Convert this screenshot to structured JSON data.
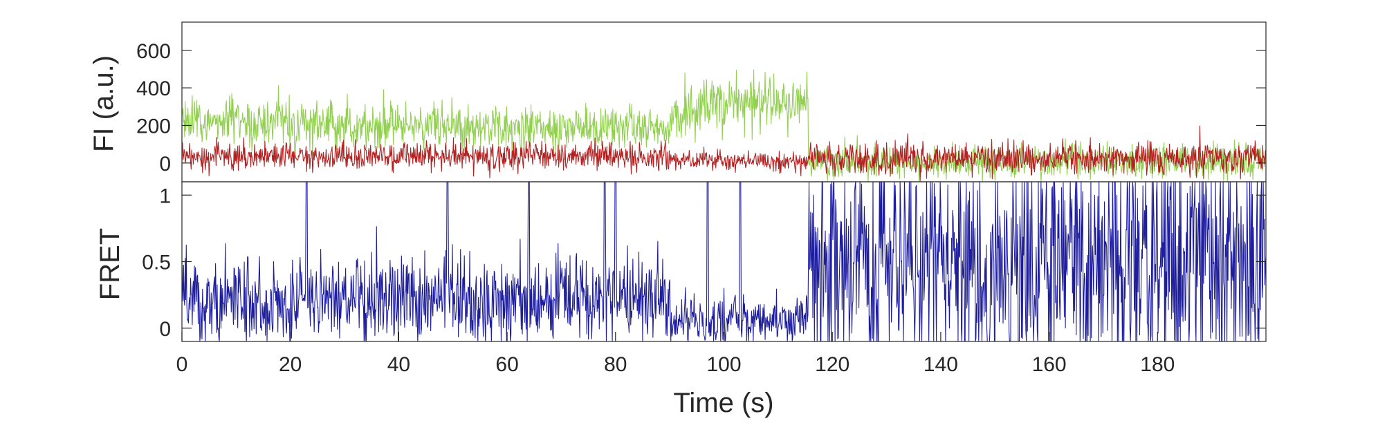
{
  "chart_data": [
    {
      "type": "line",
      "panel": "top",
      "ylabel": "FI (a.u.)",
      "xlim": [
        0,
        200
      ],
      "ylim": [
        -100,
        750
      ],
      "yticks": [
        0,
        200,
        400,
        600
      ],
      "ytick_labels": [
        "0",
        "200",
        "400",
        "600"
      ],
      "grid": false,
      "series": [
        {
          "color": "#92d050",
          "segments": [
            {
              "from": 0,
              "to": 20,
              "mean": 220,
              "noise": 65
            },
            {
              "from": 20,
              "to": 50,
              "mean": 200,
              "noise": 65
            },
            {
              "from": 50,
              "to": 90,
              "mean": 190,
              "noise": 55
            },
            {
              "from": 90,
              "to": 95,
              "mean": 260,
              "noise": 70
            },
            {
              "from": 95,
              "to": 115.5,
              "mean": 320,
              "noise": 75
            },
            {
              "from": 115.5,
              "to": 200,
              "mean": 5,
              "noise": 45
            }
          ]
        },
        {
          "color": "#b22222",
          "segments": [
            {
              "from": 0,
              "to": 90,
              "mean": 35,
              "noise": 38
            },
            {
              "from": 90,
              "to": 115.5,
              "mean": 15,
              "noise": 28
            },
            {
              "from": 115.5,
              "to": 200,
              "mean": 25,
              "noise": 42
            }
          ]
        }
      ]
    },
    {
      "type": "line",
      "panel": "bottom",
      "xlabel": "Time (s)",
      "ylabel": "FRET",
      "xlim": [
        0,
        200
      ],
      "ylim": [
        -0.1,
        1.1
      ],
      "xticks": [
        0,
        20,
        40,
        60,
        80,
        100,
        120,
        140,
        160,
        180
      ],
      "xtick_labels": [
        "0",
        "20",
        "40",
        "60",
        "80",
        "100",
        "120",
        "140",
        "160",
        "180"
      ],
      "yticks": [
        0,
        0.5,
        1
      ],
      "ytick_labels": [
        "0",
        "0.5",
        "1"
      ],
      "grid": false,
      "series": [
        {
          "color": "#1f1f9e",
          "segments": [
            {
              "from": 0,
              "to": 90,
              "mean": 0.2,
              "noise": 0.16
            },
            {
              "from": 90,
              "to": 115.5,
              "mean": 0.06,
              "noise": 0.09
            },
            {
              "from": 115.5,
              "to": 200,
              "mean": 0.5,
              "noise": 0.45
            }
          ],
          "spikes_to_top": [
            23,
            49,
            64,
            78,
            80,
            97,
            103
          ]
        }
      ]
    }
  ]
}
